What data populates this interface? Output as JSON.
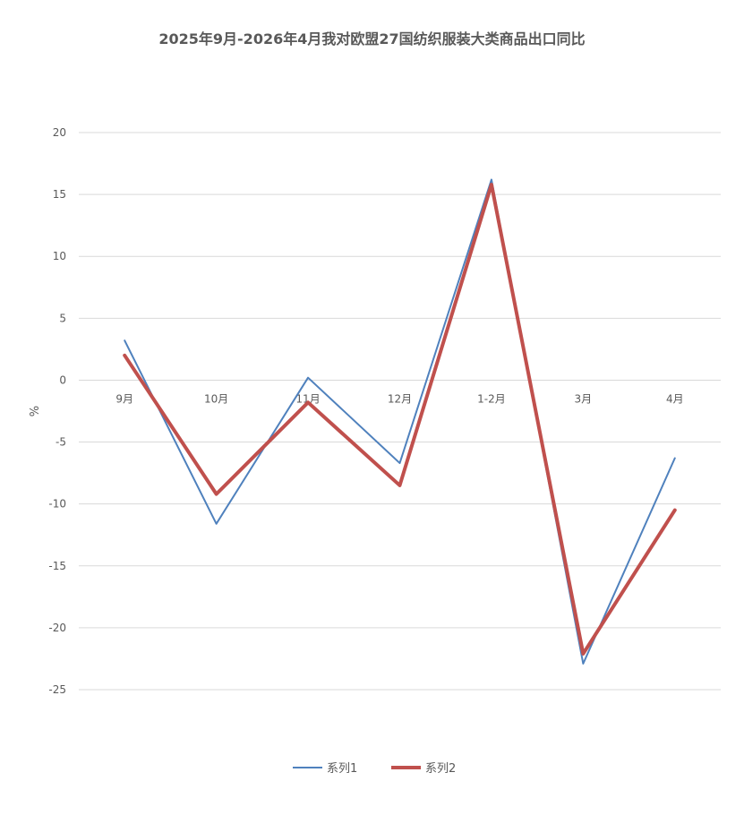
{
  "chart_data": {
    "type": "line",
    "title": "2025年9月-2026年4月我对欧盟27国纺织服装大类商品出口同比",
    "ylabel": "%",
    "xlabel": "",
    "categories": [
      "9月",
      "10月",
      "11月",
      "12月",
      "1-2月",
      "3月",
      "4月"
    ],
    "ylim": [
      -25,
      20
    ],
    "yticks": [
      20,
      15,
      10,
      5,
      0,
      -5,
      -10,
      -15,
      -20,
      -25
    ],
    "grid": true,
    "legend_position": "bottom",
    "series": [
      {
        "name": "系列1",
        "color": "#4F81BD",
        "values": [
          3.2,
          -11.6,
          0.2,
          -6.7,
          16.2,
          -22.9,
          -6.3
        ]
      },
      {
        "name": "系列2",
        "color": "#C0504D",
        "values": [
          2.0,
          -9.2,
          -1.8,
          -8.5,
          15.8,
          -22.1,
          -10.5
        ]
      }
    ]
  }
}
